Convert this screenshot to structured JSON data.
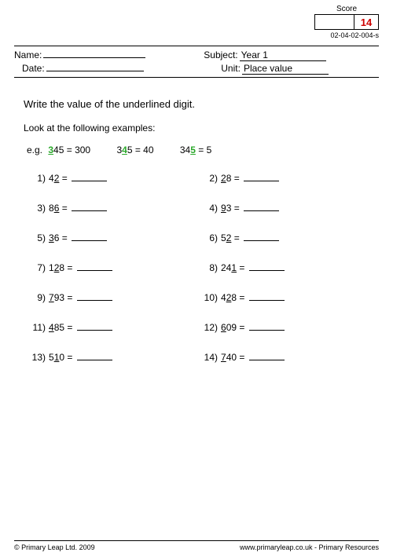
{
  "score": {
    "label": "Score",
    "value": "14",
    "code": "02-04-02-004-s"
  },
  "header": {
    "name_label": "Name:",
    "date_label": "Date:",
    "subject_label": "Subject:",
    "subject_value": "Year 1",
    "unit_label": "Unit:",
    "unit_value": "Place value"
  },
  "instruction": "Write the value of the underlined digit.",
  "examples_label": "Look at the following examples:",
  "examples": {
    "prefix": "e.g.",
    "items": [
      {
        "pre": "",
        "u": "3",
        "post": "45 = 300"
      },
      {
        "pre": "3",
        "u": "4",
        "post": "5 = 40"
      },
      {
        "pre": "34",
        "u": "5",
        "post": " = 5"
      }
    ]
  },
  "questions": [
    [
      {
        "n": "1)",
        "pre": "4",
        "u": "2",
        "post": " = "
      },
      {
        "n": "2)",
        "pre": "",
        "u": "2",
        "post": "8 = "
      }
    ],
    [
      {
        "n": "3)",
        "pre": "8",
        "u": "6",
        "post": " = "
      },
      {
        "n": "4)",
        "pre": "",
        "u": "9",
        "post": "3 = "
      }
    ],
    [
      {
        "n": "5)",
        "pre": "",
        "u": "3",
        "post": "6 = "
      },
      {
        "n": "6)",
        "pre": "5",
        "u": "2",
        "post": " = "
      }
    ],
    [
      {
        "n": "7)",
        "pre": "1",
        "u": "2",
        "post": "8 = "
      },
      {
        "n": "8)",
        "pre": "24",
        "u": "1",
        "post": " = "
      }
    ],
    [
      {
        "n": "9)",
        "pre": "",
        "u": "7",
        "post": "93 = "
      },
      {
        "n": "10)",
        "pre": "4",
        "u": "2",
        "post": "8 = "
      }
    ],
    [
      {
        "n": "11)",
        "pre": "",
        "u": "4",
        "post": "85 = "
      },
      {
        "n": "12)",
        "pre": "",
        "u": "6",
        "post": "09 = "
      }
    ],
    [
      {
        "n": "13)",
        "pre": "5",
        "u": "1",
        "post": "0 = "
      },
      {
        "n": "14)",
        "pre": "",
        "u": "7",
        "post": "40 = "
      }
    ]
  ],
  "footer": {
    "left": "© Primary Leap Ltd. 2009",
    "right": "www.primaryleap.co.uk  -  Primary Resources"
  },
  "colors": {
    "underline_green": "#2aa82a",
    "score_red": "#cc0000",
    "text": "#000000",
    "background": "#ffffff"
  }
}
